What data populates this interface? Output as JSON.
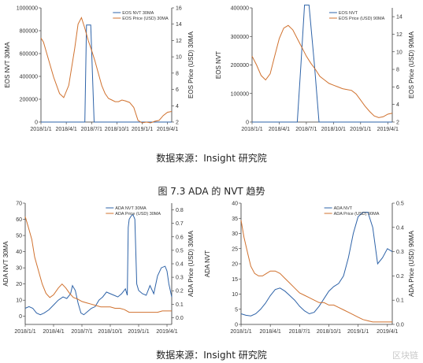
{
  "captions": {
    "source_top": "数据来源：Insight 研究院",
    "figure_title": "图 7.3 ADA 的 NVT 趋势",
    "source_bottom": "数据来源：Insight 研究院"
  },
  "watermark": "区块链",
  "colors": {
    "nvt": "#2e63a8",
    "price": "#d0712e",
    "axis": "#333333"
  },
  "chart_data": [
    {
      "type": "line",
      "panel": "top-left",
      "x_ticks": [
        "2018/1/1",
        "2018/4/1",
        "2018/7/1",
        "2018/10/1",
        "2019/1/1",
        "2019/4/1"
      ],
      "xlim": [
        0,
        15.5
      ],
      "ylabel": "EOS NVT 30MA",
      "ylim": [
        0,
        1000000
      ],
      "y_ticks": [
        "0",
        "200000",
        "400000",
        "600000",
        "800000",
        "1000000"
      ],
      "y_tick_values": [
        0,
        200000,
        400000,
        600000,
        800000,
        1000000
      ],
      "y2label": "EOS Price (USD) 30MA",
      "y2lim": [
        2,
        16
      ],
      "y2_ticks": [
        "2",
        "4",
        "6",
        "8",
        "10",
        "12",
        "14",
        "16"
      ],
      "y2_tick_values": [
        2,
        4,
        6,
        8,
        10,
        12,
        14,
        16
      ],
      "series": [
        {
          "name": "EOS NVT 30MA",
          "axis": "left",
          "color": "#2e63a8",
          "x": [
            0,
            5.2,
            5.4,
            5.9,
            6.3,
            6.55,
            15.5
          ],
          "y": [
            0,
            0,
            850000,
            850000,
            0,
            0,
            0
          ]
        },
        {
          "name": "EOS Price (USD) 30MA",
          "axis": "right",
          "color": "#d0712e",
          "x": [
            0,
            0.3,
            0.8,
            1.5,
            2.2,
            2.7,
            3.3,
            4.0,
            4.4,
            4.8,
            5.2,
            5.6,
            6.0,
            6.4,
            6.8,
            7.2,
            7.6,
            8.0,
            8.4,
            8.8,
            9.2,
            9.6,
            10.0,
            10.5,
            11.0,
            11.5,
            12.0,
            12.5,
            13.0,
            13.5,
            14.0,
            14.5,
            15.0,
            15.5
          ],
          "y": [
            12.3,
            11.8,
            10.0,
            7.5,
            5.5,
            5.0,
            6.5,
            11.0,
            14.0,
            14.8,
            13.5,
            12.0,
            10.8,
            9.5,
            8.0,
            6.5,
            5.5,
            4.9,
            4.7,
            4.5,
            4.5,
            4.7,
            4.6,
            4.4,
            3.8,
            2.2,
            1.9,
            2.0,
            1.9,
            2.1,
            2.2,
            2.8,
            3.2,
            3.3
          ]
        }
      ]
    },
    {
      "type": "line",
      "panel": "top-right",
      "x_ticks": [
        "2018/1/1",
        "2018/4/1",
        "2018/7/1",
        "2018/10/1",
        "2019/1/1",
        "2019/4/1"
      ],
      "xlim": [
        0,
        15.5
      ],
      "ylabel": "EOS NVT",
      "ylim": [
        0,
        400000
      ],
      "y_ticks": [
        "0",
        "100000",
        "200000",
        "300000",
        "400000"
      ],
      "y_tick_values": [
        0,
        100000,
        200000,
        300000,
        400000
      ],
      "y2label": "EOS Price (USD) 90MA",
      "y2lim": [
        2,
        15
      ],
      "y2_ticks": [
        "2",
        "4",
        "6",
        "8",
        "10",
        "12",
        "14"
      ],
      "y2_tick_values": [
        2,
        4,
        6,
        8,
        10,
        12,
        14
      ],
      "series": [
        {
          "name": "EOS NVT",
          "axis": "left",
          "color": "#2e63a8",
          "x": [
            0,
            5.0,
            5.4,
            5.8,
            6.3,
            6.9,
            7.4,
            15.5
          ],
          "y": [
            0,
            0,
            200000,
            410000,
            410000,
            200000,
            0,
            0
          ]
        },
        {
          "name": "EOS Price (USD) 90MA",
          "axis": "right",
          "color": "#d0712e",
          "x": [
            0,
            0.5,
            1.0,
            1.5,
            2.0,
            2.5,
            3.0,
            3.5,
            4.0,
            4.5,
            5.0,
            5.5,
            6.0,
            6.5,
            7.0,
            7.5,
            8.0,
            8.5,
            9.0,
            9.5,
            10.0,
            10.5,
            11.0,
            11.5,
            12.0,
            12.5,
            13.0,
            13.5,
            14.0,
            14.5,
            15.0,
            15.5
          ],
          "y": [
            9.5,
            8.5,
            7.3,
            6.8,
            7.5,
            9.5,
            11.5,
            12.7,
            13.0,
            12.5,
            11.5,
            10.5,
            9.5,
            8.7,
            8.0,
            7.2,
            6.8,
            6.4,
            6.2,
            6.0,
            5.8,
            5.7,
            5.6,
            5.2,
            4.5,
            3.8,
            3.2,
            2.7,
            2.5,
            2.6,
            2.9,
            3.0
          ]
        }
      ]
    },
    {
      "type": "line",
      "panel": "bottom-left",
      "x_ticks": [
        "2018/1/1",
        "2018/4/1",
        "2018/7/1",
        "2018/10/1",
        "2019/1/1",
        "2019/4/1"
      ],
      "xlim": [
        0,
        15.5
      ],
      "ylabel": "ADA NVT 30MA",
      "ylim": [
        -5,
        70
      ],
      "y_ticks": [
        "0",
        "10",
        "20",
        "30",
        "40",
        "50",
        "60",
        "70"
      ],
      "y_tick_values": [
        0,
        10,
        20,
        30,
        40,
        50,
        60,
        70
      ],
      "y2label": "ADA Price (USD) 30MA",
      "y2lim": [
        -0.05,
        0.85
      ],
      "y2_ticks": [
        "0.0",
        "0.1",
        "0.2",
        "0.3",
        "0.4",
        "0.5",
        "0.6",
        "0.7",
        "0.8"
      ],
      "y2_tick_values": [
        0,
        0.1,
        0.2,
        0.3,
        0.4,
        0.5,
        0.6,
        0.7,
        0.8
      ],
      "series": [
        {
          "name": "ADA NVT 30MA",
          "axis": "left",
          "color": "#2e63a8",
          "x": [
            0,
            0.4,
            0.8,
            1.2,
            1.6,
            2.0,
            2.5,
            3.0,
            3.5,
            4.0,
            4.4,
            4.8,
            5.0,
            5.3,
            5.6,
            5.9,
            6.2,
            6.6,
            7.0,
            7.4,
            7.8,
            8.2,
            8.6,
            9.0,
            9.4,
            9.8,
            10.2,
            10.6,
            10.8,
            10.9,
            11.0,
            11.2,
            11.4,
            11.6,
            11.8,
            12.0,
            12.4,
            12.8,
            13.2,
            13.6,
            14.0,
            14.4,
            14.8,
            15.0,
            15.2,
            15.5
          ],
          "y": [
            5,
            6,
            5,
            2,
            1,
            2,
            4,
            7,
            10,
            12,
            11,
            14,
            19,
            16,
            8,
            2,
            1,
            3,
            5,
            6,
            10,
            12,
            15,
            14,
            13,
            12,
            14,
            17,
            13,
            55,
            60,
            62,
            63,
            60,
            20,
            16,
            14,
            13,
            19,
            14,
            25,
            30,
            31,
            28,
            20,
            12
          ]
        },
        {
          "name": "ADA Price (USD) 30MA",
          "axis": "right",
          "color": "#d0712e",
          "x": [
            0,
            0.3,
            0.7,
            1.0,
            1.4,
            1.8,
            2.2,
            2.6,
            3.0,
            3.5,
            3.9,
            4.3,
            4.7,
            5.1,
            5.5,
            6.0,
            6.5,
            7.0,
            7.5,
            8.0,
            8.5,
            9.0,
            9.5,
            10.0,
            10.5,
            11.0,
            11.5,
            12.0,
            12.5,
            13.0,
            13.5,
            14.0,
            14.5,
            15.0,
            15.5
          ],
          "y": [
            0.75,
            0.68,
            0.58,
            0.45,
            0.35,
            0.25,
            0.18,
            0.15,
            0.17,
            0.22,
            0.25,
            0.22,
            0.18,
            0.15,
            0.14,
            0.12,
            0.11,
            0.1,
            0.09,
            0.08,
            0.08,
            0.08,
            0.07,
            0.07,
            0.06,
            0.04,
            0.04,
            0.04,
            0.04,
            0.04,
            0.04,
            0.04,
            0.05,
            0.05,
            0.05
          ]
        }
      ]
    },
    {
      "type": "line",
      "panel": "bottom-right",
      "x_ticks": [
        "2018/1/1",
        "2018/4/1",
        "2018/7/1",
        "2018/10/1",
        "2019/1/1",
        "2019/4/1"
      ],
      "xlim": [
        0,
        15.5
      ],
      "ylabel": "ADA NVT",
      "ylim": [
        0,
        40
      ],
      "y_ticks": [
        "0",
        "5",
        "10",
        "15",
        "20",
        "25",
        "30",
        "35",
        "40"
      ],
      "y_tick_values": [
        0,
        5,
        10,
        15,
        20,
        25,
        30,
        35,
        40
      ],
      "y2label": "ADA Price (USD) 90MA",
      "y2lim": [
        0,
        0.5
      ],
      "y2_ticks": [
        "0.0",
        "0.1",
        "0.2",
        "0.3",
        "0.4",
        "0.5"
      ],
      "y2_tick_values": [
        0,
        0.1,
        0.2,
        0.3,
        0.4,
        0.5
      ],
      "series": [
        {
          "name": "ADA NVT",
          "axis": "left",
          "color": "#2e63a8",
          "x": [
            0,
            0.5,
            1.0,
            1.5,
            2.0,
            2.5,
            3.0,
            3.5,
            4.0,
            4.5,
            5.0,
            5.5,
            6.0,
            6.5,
            7.0,
            7.5,
            8.0,
            8.5,
            9.0,
            9.5,
            10.0,
            10.5,
            11.0,
            11.5,
            12.0,
            12.5,
            13.0,
            13.5,
            14.0,
            14.5,
            15.0,
            15.5
          ],
          "y": [
            3.5,
            3.0,
            2.8,
            3.5,
            5.0,
            7.0,
            9.5,
            11.5,
            12.0,
            11.0,
            9.5,
            8.0,
            6.0,
            4.5,
            3.5,
            4.0,
            6.0,
            8.5,
            11.0,
            12.5,
            13.5,
            16.0,
            22.0,
            30.0,
            35.5,
            37.0,
            37.0,
            32.0,
            20.0,
            22.0,
            25.0,
            24.0
          ]
        },
        {
          "name": "ADA Price (USD) 90MA",
          "axis": "right",
          "color": "#d0712e",
          "x": [
            0,
            0.3,
            0.7,
            1.0,
            1.4,
            1.8,
            2.2,
            2.6,
            3.0,
            3.5,
            4.0,
            4.5,
            5.0,
            5.5,
            6.0,
            6.5,
            7.0,
            7.5,
            8.0,
            8.5,
            9.0,
            9.5,
            10.0,
            10.5,
            11.0,
            11.5,
            12.0,
            12.5,
            13.0,
            13.5,
            14.0,
            14.5,
            15.0,
            15.5
          ],
          "y": [
            0.43,
            0.36,
            0.29,
            0.24,
            0.21,
            0.2,
            0.2,
            0.21,
            0.22,
            0.22,
            0.21,
            0.19,
            0.17,
            0.15,
            0.13,
            0.12,
            0.11,
            0.1,
            0.09,
            0.09,
            0.08,
            0.08,
            0.07,
            0.06,
            0.05,
            0.04,
            0.03,
            0.02,
            0.015,
            0.01,
            0.01,
            0.01,
            0.01,
            0.01
          ]
        }
      ]
    }
  ]
}
